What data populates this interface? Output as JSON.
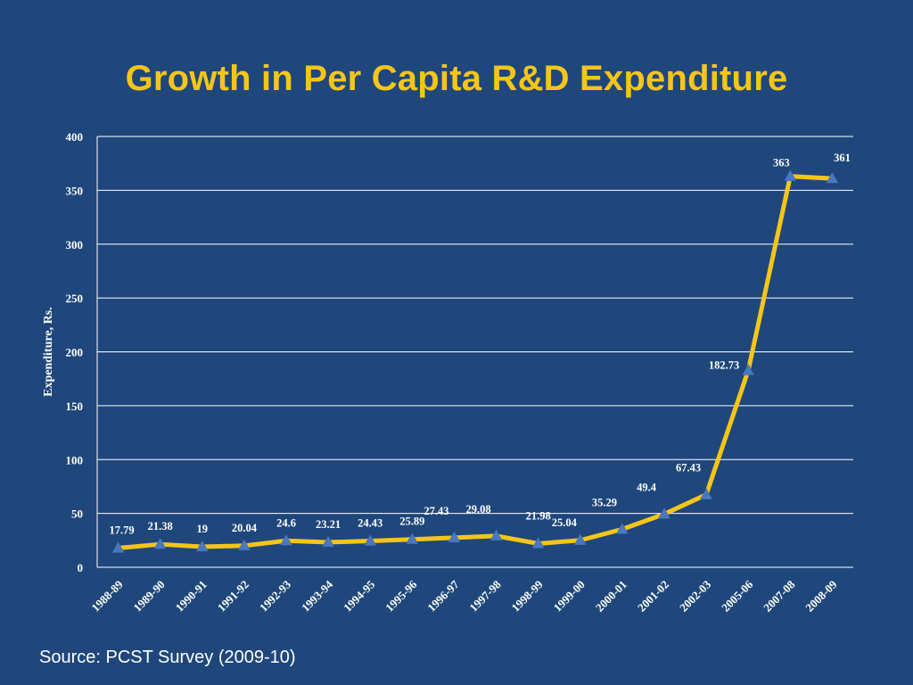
{
  "slide": {
    "title": "Growth in Per Capita R&D Expenditure",
    "source": "Source: PCST Survey (2009-10)"
  },
  "chart_data": {
    "type": "line",
    "title": "Growth in Per Capita R&D Expenditure",
    "xlabel": "",
    "ylabel": "Expenditure, Rs.",
    "categories": [
      "1988-89",
      "1989-90",
      "1990-91",
      "1991-92",
      "1992-93",
      "1993-94",
      "1994-95",
      "1995-96",
      "1996-97",
      "1997-98",
      "1998-99",
      "1999-00",
      "2000-01",
      "2001-02",
      "2002-03",
      "2005-06",
      "2007-08",
      "2008-09"
    ],
    "series": [
      {
        "values": [
          17.79,
          21.38,
          19,
          20.04,
          24.6,
          23.21,
          24.43,
          25.89,
          27.43,
          29.08,
          21.98,
          25.04,
          35.29,
          49.4,
          67.43,
          182.73,
          363,
          361
        ],
        "data_labels": [
          "17.79",
          "21.38",
          "19",
          "20.04",
          "24.6",
          "23.21",
          "24.43",
          "25.89",
          "27.43",
          "29.08",
          "21.98",
          "25.04",
          "35.29",
          "49.4",
          "67.43",
          "182.73",
          "363",
          "361"
        ]
      }
    ],
    "yticks": [
      "0",
      "50",
      "100",
      "150",
      "200",
      "250",
      "300",
      "350",
      "400"
    ],
    "ylim": [
      0,
      400
    ],
    "grid": true,
    "legend": "none",
    "colors": {
      "background": "#1f477c",
      "line": "#f5c518",
      "marker": "#4a78c0",
      "gridline": "#ffffff",
      "text": "#ffffff",
      "title": "#f5c518"
    }
  }
}
